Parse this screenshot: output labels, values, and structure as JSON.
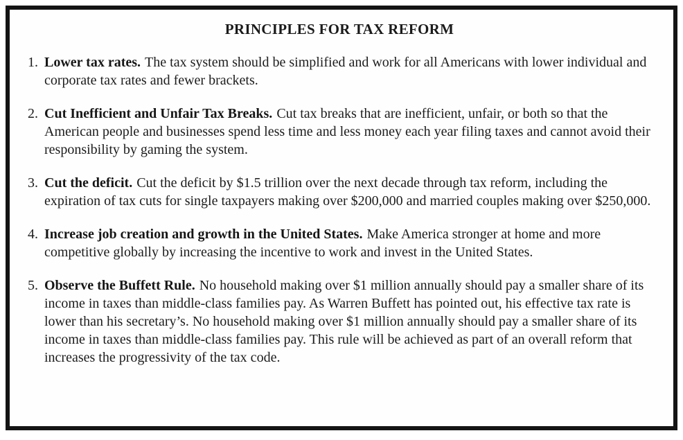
{
  "title": "PRINCIPLES FOR TAX REFORM",
  "principles": [
    {
      "number": "1.",
      "lead": "Lower tax rates.",
      "body": "The tax system should be simplified and work for all Americans with lower individual and corporate tax rates and fewer brackets."
    },
    {
      "number": "2.",
      "lead": "Cut Inefficient and Unfair Tax Breaks.",
      "body": "Cut tax breaks that are inefficient, unfair, or both so that the American people and businesses spend less time and less money each year filing taxes and cannot avoid their responsibility by gaming the system."
    },
    {
      "number": "3.",
      "lead": "Cut the deficit.",
      "body": "Cut the deficit by $1.5 trillion over the next decade through tax reform, including the expiration of tax cuts for single taxpayers making over $200,000 and married couples making over $250,000."
    },
    {
      "number": "4.",
      "lead": "Increase job creation and growth in the United States.",
      "body": "Make America stronger at home and more competitive globally by increasing the incentive to work and invest in the United States."
    },
    {
      "number": "5.",
      "lead": "Observe the Buffett Rule.",
      "body": "No household making over $1 million annually should pay a smaller share of its income in taxes than middle-class families pay. As Warren Buffett has pointed out, his effective tax rate is lower than his secretary’s. No household making over $1 million annually should pay a smaller share of its income in taxes than middle-class families pay. This rule will be achieved as part of an overall reform that increases the progressivity of the tax code."
    }
  ]
}
